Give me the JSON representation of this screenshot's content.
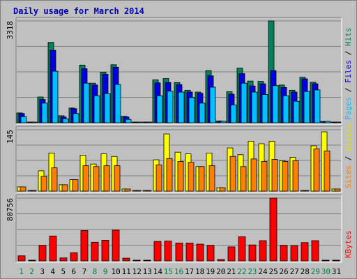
{
  "chart_data": {
    "type": "bar",
    "title": "Daily usage for March 2014",
    "days": [
      "1",
      "2",
      "3",
      "4",
      "5",
      "6",
      "7",
      "8",
      "9",
      "10",
      "11",
      "12",
      "13",
      "14",
      "15",
      "16",
      "17",
      "18",
      "19",
      "20",
      "21",
      "22",
      "23",
      "24",
      "25",
      "26",
      "27",
      "28",
      "29",
      "30",
      "31"
    ],
    "weekend_days": [
      "1",
      "2",
      "8",
      "9",
      "15",
      "16",
      "22",
      "23",
      "29",
      "30"
    ],
    "panels": [
      {
        "id": "hits",
        "ymax_label": "3318",
        "ymax": 3318,
        "right_label": [
          {
            "text": "Pages",
            "color": "#00c0ff"
          },
          {
            "text": " / ",
            "color": "#000000"
          },
          {
            "text": "Files",
            "color": "#0000e0"
          },
          {
            "text": " / ",
            "color": "#000000"
          },
          {
            "text": "Hits",
            "color": "#00805c"
          }
        ],
        "series": [
          {
            "name": "Hits",
            "color": "#00805c",
            "values": [
              320,
              0,
              840,
              2620,
              230,
              480,
              1880,
              1290,
              1650,
              1890,
              210,
              0,
              0,
              1400,
              1440,
              1310,
              1060,
              1000,
              1700,
              60,
              1010,
              1780,
              1360,
              1350,
              3318,
              1230,
              1060,
              1480,
              1320,
              30,
              0
            ]
          },
          {
            "name": "Files",
            "color": "#0000e0",
            "values": [
              300,
              0,
              760,
              2360,
              190,
              460,
              1760,
              1230,
              1580,
              1810,
              190,
              0,
              0,
              1300,
              1310,
              1240,
              1000,
              960,
              1530,
              50,
              930,
              1600,
              1200,
              1270,
              1700,
              1150,
              1000,
              1430,
              1270,
              30,
              0
            ]
          },
          {
            "name": "Pages",
            "color": "#00c0ff",
            "values": [
              200,
              0,
              640,
              1680,
              130,
              300,
              1290,
              880,
              950,
              1250,
              110,
              0,
              0,
              880,
              1030,
              1000,
              820,
              640,
              1160,
              20,
              580,
              1290,
              1000,
              920,
              1210,
              880,
              700,
              1020,
              1070,
              30,
              0
            ]
          }
        ]
      },
      {
        "id": "visits",
        "ymax_label": "145",
        "ymax": 145,
        "right_label": [
          {
            "text": "Sites",
            "color": "#ff8000"
          },
          {
            "text": " / ",
            "color": "#000000"
          },
          {
            "text": "Visits",
            "color": "#e0e000"
          }
        ],
        "series": [
          {
            "name": "Visits",
            "color": "#ffff00",
            "values": [
              10,
              0,
              48,
              90,
              15,
              27,
              85,
              64,
              88,
              82,
              5,
              0,
              0,
              74,
              135,
              92,
              88,
              58,
              90,
              8,
              102,
              86,
              118,
              112,
              118,
              72,
              80,
              0,
              107,
              140,
              5
            ]
          },
          {
            "name": "Sites",
            "color": "#ff8000",
            "values": [
              10,
              0,
              35,
              55,
              15,
              27,
              60,
              58,
              60,
              60,
              5,
              0,
              0,
              62,
              77,
              70,
              68,
              58,
              60,
              8,
              82,
              58,
              76,
              70,
              75,
              70,
              72,
              0,
              100,
              95,
              5
            ]
          }
        ]
      },
      {
        "id": "kbytes",
        "ymax_label": "80756",
        "ymax": 80756,
        "right_label": [
          {
            "text": "KBytes",
            "color": "#ff0000"
          }
        ],
        "series": [
          {
            "name": "KBytes",
            "color": "#ff0000",
            "values": [
              6500,
              0,
              20000,
              32000,
              3800,
              10500,
              39000,
              24000,
              26500,
              39500,
              3500,
              0,
              0,
              25000,
              25500,
              23000,
              23000,
              21500,
              20000,
              1500,
              18000,
              31000,
              20500,
              26000,
              80756,
              20000,
              19500,
              23500,
              26000,
              0,
              0
            ]
          }
        ]
      }
    ]
  }
}
